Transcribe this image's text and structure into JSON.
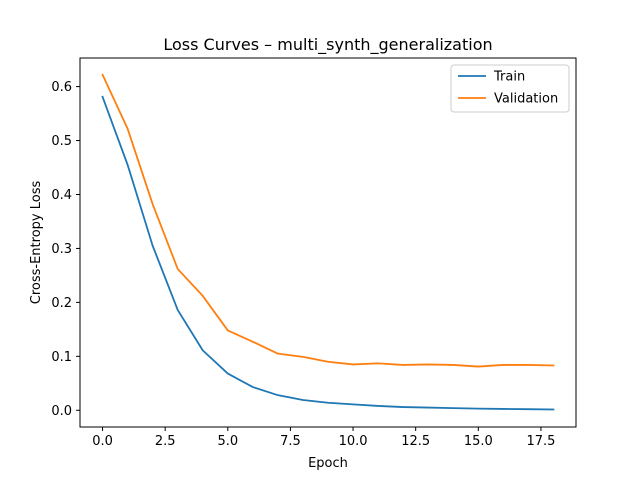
{
  "chart_data": {
    "type": "line",
    "title": "Loss Curves – multi_synth_generalization",
    "xlabel": "Epoch",
    "ylabel": "Cross-Entropy Loss",
    "xlim": [
      -0.9,
      18.9
    ],
    "ylim": [
      -0.031,
      0.653
    ],
    "x_ticks": [
      0.0,
      2.5,
      5.0,
      7.5,
      10.0,
      12.5,
      15.0,
      17.5
    ],
    "x_tick_labels": [
      "0.0",
      "2.5",
      "5.0",
      "7.5",
      "10.0",
      "12.5",
      "15.0",
      "17.5"
    ],
    "y_ticks": [
      0.0,
      0.1,
      0.2,
      0.3,
      0.4,
      0.5,
      0.6
    ],
    "y_tick_labels": [
      "0.0",
      "0.1",
      "0.2",
      "0.3",
      "0.4",
      "0.5",
      "0.6"
    ],
    "grid": false,
    "legend_position": "top-right",
    "x": [
      0,
      1,
      2,
      3,
      4,
      5,
      6,
      7,
      8,
      9,
      10,
      11,
      12,
      13,
      14,
      15,
      16,
      17,
      18
    ],
    "series": [
      {
        "name": "Train",
        "color": "#1f77b4",
        "values": [
          0.581,
          0.455,
          0.305,
          0.186,
          0.111,
          0.068,
          0.043,
          0.028,
          0.019,
          0.014,
          0.011,
          0.008,
          0.006,
          0.005,
          0.004,
          0.003,
          0.0025,
          0.002,
          0.0015
        ]
      },
      {
        "name": "Validation",
        "color": "#ff7f0e",
        "values": [
          0.622,
          0.522,
          0.382,
          0.262,
          0.212,
          0.148,
          0.127,
          0.105,
          0.099,
          0.09,
          0.085,
          0.087,
          0.084,
          0.085,
          0.084,
          0.081,
          0.084,
          0.084,
          0.083
        ]
      }
    ]
  }
}
